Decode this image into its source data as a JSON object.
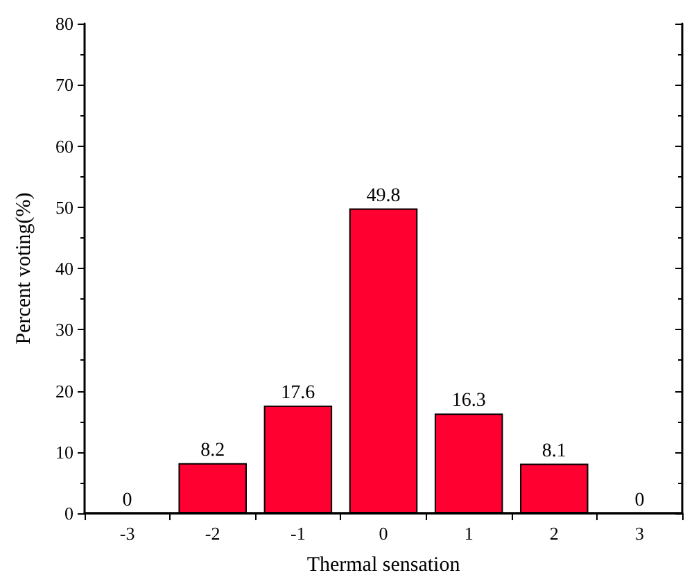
{
  "chart_data": {
    "type": "bar",
    "xlabel": "Thermal sensation",
    "ylabel": "Percent voting(%)",
    "categories": [
      "-3",
      "-2",
      "-1",
      "0",
      "1",
      "2",
      "3"
    ],
    "values": [
      0,
      8.2,
      17.6,
      49.8,
      16.3,
      8.1,
      0
    ],
    "color": "#ff0030",
    "ylim": [
      0,
      80
    ],
    "yticks": [
      0,
      10,
      20,
      30,
      40,
      50,
      60,
      70,
      80
    ],
    "grid": false,
    "data_labels": true
  }
}
